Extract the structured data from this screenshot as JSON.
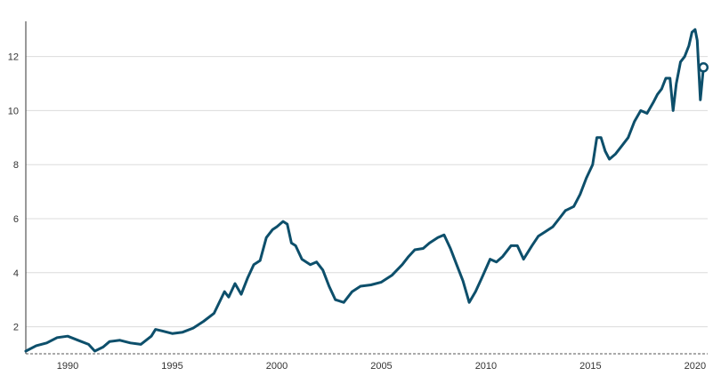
{
  "chart_data": {
    "type": "line",
    "title": "",
    "xlabel": "",
    "ylabel": "",
    "xlim": [
      1988.0,
      2020.6
    ],
    "ylim": [
      1,
      13.6
    ],
    "x_ticks": [
      1990,
      1995,
      2000,
      2005,
      2010,
      2015,
      2020
    ],
    "y_ticks": [
      2,
      4,
      6,
      8,
      10,
      12
    ],
    "grid": true,
    "baseline_value": 1,
    "line_color": "#0d4f6b",
    "series": [
      {
        "x": [
          1988.0,
          1988.5,
          1989.0,
          1989.5,
          1990.0,
          1990.5,
          1991.0,
          1991.3,
          1991.7,
          1992.0,
          1992.5,
          1993.0,
          1993.5,
          1994.0,
          1994.2,
          1994.5,
          1995.0,
          1995.5,
          1996.0,
          1996.5,
          1997.0,
          1997.5,
          1997.7,
          1998.0,
          1998.3,
          1998.6,
          1998.9,
          1999.2,
          1999.5,
          1999.8,
          2000.0,
          2000.3,
          2000.5,
          2000.7,
          2000.9,
          2001.2,
          2001.6,
          2001.9,
          2002.2,
          2002.5,
          2002.8,
          2003.2,
          2003.6,
          2004.0,
          2004.5,
          2005.0,
          2005.5,
          2006.0,
          2006.3,
          2006.6,
          2007.0,
          2007.3,
          2007.7,
          2008.0,
          2008.3,
          2008.6,
          2008.9,
          2009.2,
          2009.5,
          2009.8,
          2010.2,
          2010.5,
          2010.8,
          2011.2,
          2011.5,
          2011.8,
          2012.2,
          2012.5,
          2012.8,
          2013.2,
          2013.5,
          2013.8,
          2014.2,
          2014.5,
          2014.8,
          2015.1,
          2015.3,
          2015.5,
          2015.7,
          2015.9,
          2016.2,
          2016.5,
          2016.8,
          2017.1,
          2017.4,
          2017.7,
          2018.0,
          2018.2,
          2018.4,
          2018.6,
          2018.8,
          2018.95,
          2019.1,
          2019.3,
          2019.5,
          2019.7,
          2019.85,
          2020.0,
          2020.1,
          2020.25,
          2020.4
        ],
        "values": [
          1.1,
          1.3,
          1.4,
          1.6,
          1.65,
          1.5,
          1.35,
          1.1,
          1.25,
          1.45,
          1.5,
          1.4,
          1.35,
          1.65,
          1.9,
          1.85,
          1.75,
          1.8,
          1.95,
          2.2,
          2.5,
          3.3,
          3.1,
          3.6,
          3.2,
          3.8,
          4.3,
          4.45,
          5.3,
          5.6,
          5.7,
          5.9,
          5.8,
          5.1,
          5.0,
          4.5,
          4.3,
          4.4,
          4.1,
          3.5,
          3.0,
          2.9,
          3.3,
          3.5,
          3.55,
          3.65,
          3.9,
          4.3,
          4.6,
          4.85,
          4.9,
          5.1,
          5.3,
          5.4,
          4.9,
          4.3,
          3.7,
          2.9,
          3.3,
          3.8,
          4.5,
          4.4,
          4.6,
          5.0,
          5.0,
          4.5,
          5.0,
          5.35,
          5.5,
          5.7,
          6.0,
          6.3,
          6.45,
          6.9,
          7.5,
          8.0,
          9.0,
          9.0,
          8.5,
          8.2,
          8.4,
          8.7,
          9.0,
          9.6,
          10.0,
          9.9,
          10.3,
          10.6,
          10.8,
          11.2,
          11.2,
          10.0,
          11.0,
          11.8,
          12.0,
          12.4,
          12.9,
          13.0,
          12.6,
          10.4,
          11.6
        ]
      }
    ]
  }
}
